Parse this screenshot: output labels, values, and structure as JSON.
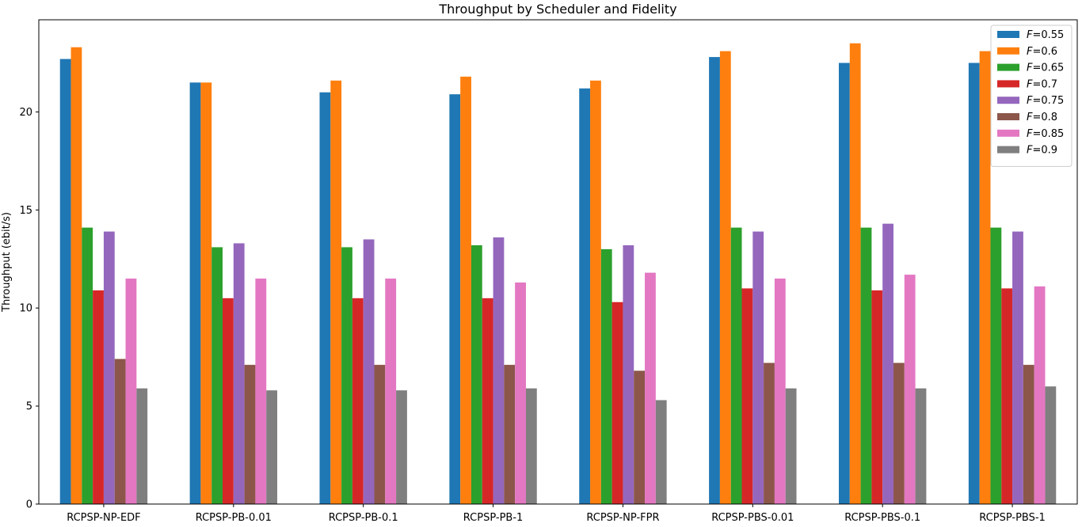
{
  "chart_data": {
    "type": "bar",
    "title": "Throughput by Scheduler and Fidelity",
    "xlabel": "",
    "ylabel": "Throughput (ebit/s)",
    "ylim": [
      0,
      24.7
    ],
    "yticks": [
      0,
      5,
      10,
      15,
      20
    ],
    "grid": false,
    "legend_position": "top-right",
    "categories": [
      "RCPSP-NP-EDF",
      "RCPSP-PB-0.01",
      "RCPSP-PB-0.1",
      "RCPSP-PB-1",
      "RCPSP-NP-FPR",
      "RCPSP-PBS-0.01",
      "RCPSP-PBS-0.1",
      "RCPSP-PBS-1"
    ],
    "series": [
      {
        "name": "0.55",
        "color": "#1f77b4",
        "values": [
          22.7,
          21.5,
          21.0,
          20.9,
          21.2,
          22.8,
          22.5,
          22.5
        ]
      },
      {
        "name": "0.6",
        "color": "#ff7f0e",
        "values": [
          23.3,
          21.5,
          21.6,
          21.8,
          21.6,
          23.1,
          23.5,
          23.1
        ]
      },
      {
        "name": "0.65",
        "color": "#2ca02c",
        "values": [
          14.1,
          13.1,
          13.1,
          13.2,
          13.0,
          14.1,
          14.1,
          14.1
        ]
      },
      {
        "name": "0.7",
        "color": "#d62728",
        "values": [
          10.9,
          10.5,
          10.5,
          10.5,
          10.3,
          11.0,
          10.9,
          11.0
        ]
      },
      {
        "name": "0.75",
        "color": "#9467bd",
        "values": [
          13.9,
          13.3,
          13.5,
          13.6,
          13.2,
          13.9,
          14.3,
          13.9
        ]
      },
      {
        "name": "0.8",
        "color": "#8c564b",
        "values": [
          7.4,
          7.1,
          7.1,
          7.1,
          6.8,
          7.2,
          7.2,
          7.1
        ]
      },
      {
        "name": "0.85",
        "color": "#e377c2",
        "values": [
          11.5,
          11.5,
          11.5,
          11.3,
          11.8,
          11.5,
          11.7,
          11.1
        ]
      },
      {
        "name": "0.9",
        "color": "#7f7f7f",
        "values": [
          5.9,
          5.8,
          5.8,
          5.9,
          5.3,
          5.9,
          5.9,
          6.0
        ]
      }
    ]
  }
}
